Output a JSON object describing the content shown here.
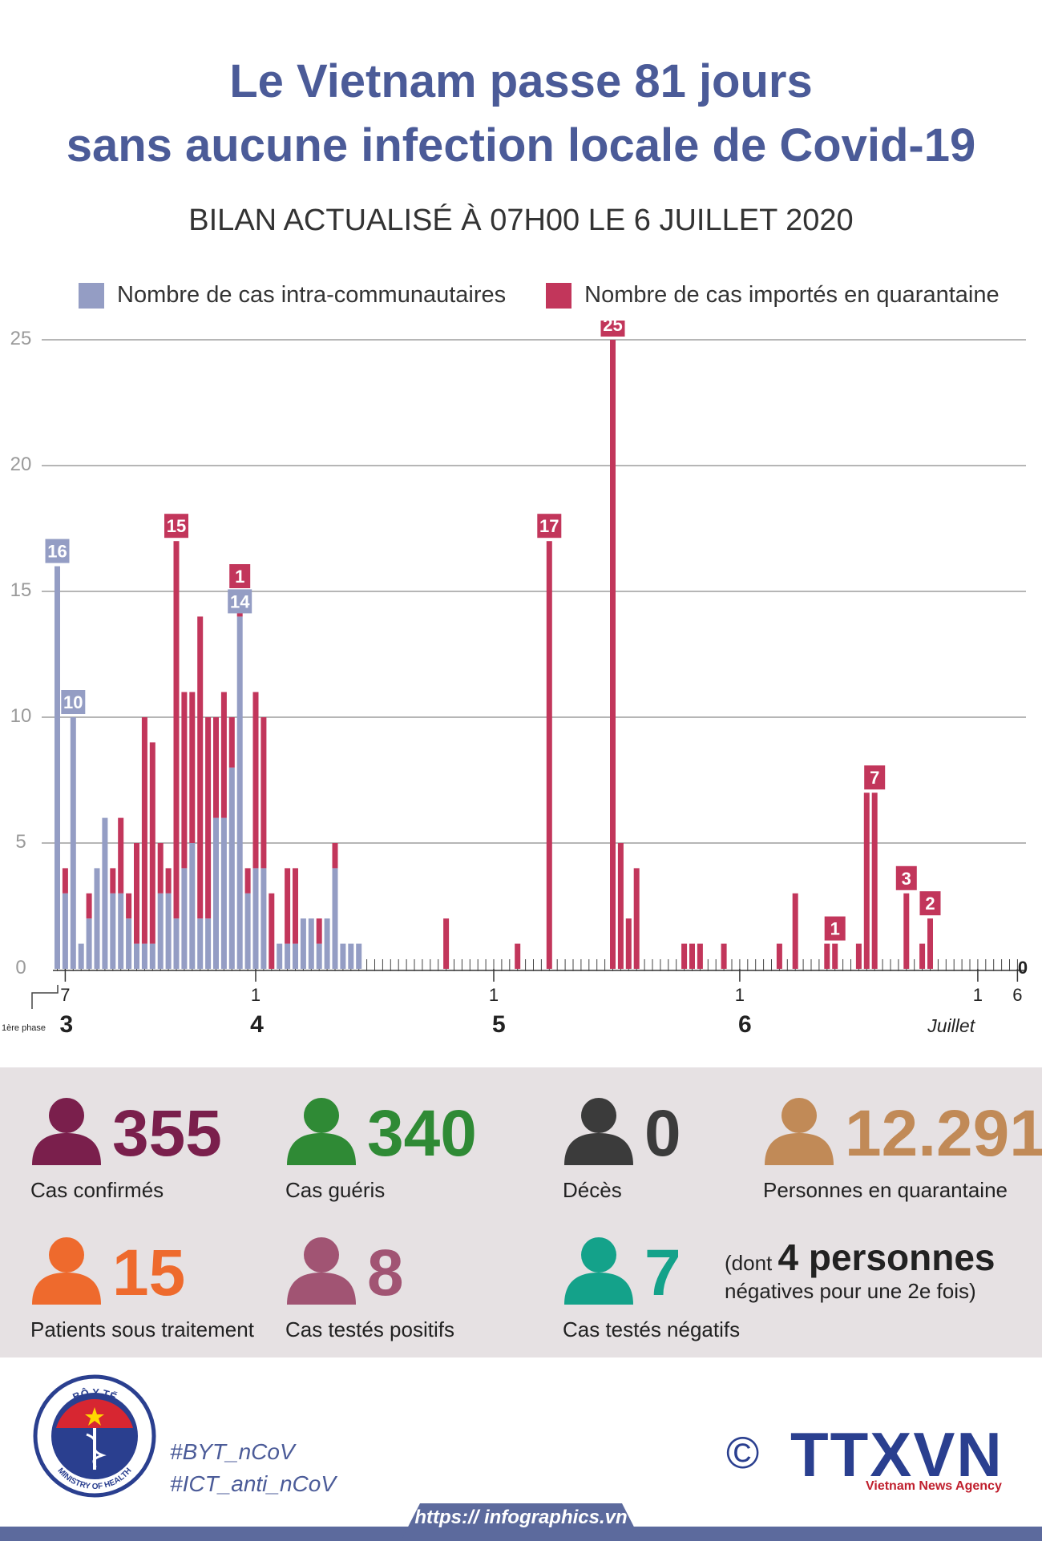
{
  "title": {
    "line1": "Le Vietnam passe 81 jours",
    "line2": "sans aucune infection locale de Covid-19",
    "subtitle": "BILAN ACTUALISÉ À 07H00 LE 6 JUILLET 2020"
  },
  "legend": {
    "local": "Nombre de cas intra-communautaires",
    "imported": "Nombre de cas importés en quarantaine"
  },
  "colors": {
    "local": "#949dc4",
    "imported": "#c2365b",
    "title": "#4b5b98"
  },
  "chart_data": {
    "type": "bar",
    "stacked": true,
    "title": "",
    "xlabel": "",
    "ylabel": "",
    "ylim": [
      0,
      25
    ],
    "yticks": [
      0,
      5,
      10,
      15,
      20,
      25
    ],
    "grid": true,
    "n_days": 122,
    "series": [
      {
        "name": "Nombre de cas intra-communautaires",
        "points": [
          [
            0,
            16
          ],
          [
            1,
            3
          ],
          [
            2,
            10
          ],
          [
            3,
            1
          ],
          [
            4,
            2
          ],
          [
            5,
            4
          ],
          [
            6,
            6
          ],
          [
            7,
            3
          ],
          [
            8,
            3
          ],
          [
            9,
            2
          ],
          [
            10,
            1
          ],
          [
            11,
            1
          ],
          [
            12,
            1
          ],
          [
            13,
            3
          ],
          [
            14,
            3
          ],
          [
            15,
            2
          ],
          [
            16,
            4
          ],
          [
            17,
            5
          ],
          [
            18,
            2
          ],
          [
            19,
            2
          ],
          [
            20,
            6
          ],
          [
            21,
            6
          ],
          [
            22,
            8
          ],
          [
            23,
            14
          ],
          [
            24,
            3
          ],
          [
            25,
            4
          ],
          [
            26,
            4
          ],
          [
            28,
            1
          ],
          [
            29,
            1
          ],
          [
            30,
            1
          ],
          [
            31,
            2
          ],
          [
            32,
            2
          ],
          [
            33,
            1
          ],
          [
            34,
            2
          ],
          [
            35,
            4
          ],
          [
            36,
            1
          ],
          [
            37,
            1
          ],
          [
            38,
            1
          ]
        ]
      },
      {
        "name": "Nombre de cas importés en quarantaine",
        "points": [
          [
            1,
            1
          ],
          [
            4,
            1
          ],
          [
            5,
            0
          ],
          [
            7,
            1
          ],
          [
            8,
            3
          ],
          [
            9,
            1
          ],
          [
            10,
            4
          ],
          [
            11,
            9
          ],
          [
            12,
            8
          ],
          [
            13,
            2
          ],
          [
            14,
            1
          ],
          [
            15,
            15
          ],
          [
            16,
            7
          ],
          [
            17,
            6
          ],
          [
            18,
            12
          ],
          [
            19,
            8
          ],
          [
            20,
            4
          ],
          [
            21,
            5
          ],
          [
            22,
            2
          ],
          [
            23,
            1
          ],
          [
            24,
            1
          ],
          [
            25,
            7
          ],
          [
            26,
            6
          ],
          [
            27,
            3
          ],
          [
            29,
            3
          ],
          [
            30,
            3
          ],
          [
            33,
            1
          ],
          [
            35,
            1
          ],
          [
            49,
            2
          ],
          [
            58,
            1
          ],
          [
            62,
            17
          ],
          [
            70,
            25
          ],
          [
            71,
            5
          ],
          [
            72,
            2
          ],
          [
            73,
            4
          ],
          [
            79,
            1
          ],
          [
            80,
            1
          ],
          [
            81,
            1
          ],
          [
            84,
            1
          ],
          [
            91,
            1
          ],
          [
            93,
            3
          ],
          [
            97,
            1
          ],
          [
            98,
            1
          ],
          [
            101,
            1
          ],
          [
            102,
            7
          ],
          [
            103,
            7
          ],
          [
            107,
            3
          ],
          [
            109,
            1
          ],
          [
            110,
            2
          ]
        ]
      }
    ],
    "bar_labels": [
      {
        "day": 0,
        "value": "16",
        "series": "local"
      },
      {
        "day": 2,
        "value": "10",
        "series": "local"
      },
      {
        "day": 15,
        "value": "15",
        "series": "imported"
      },
      {
        "day": 23,
        "value": "14",
        "series": "local"
      },
      {
        "day": 23,
        "value": "1",
        "series": "imported"
      },
      {
        "day": 62,
        "value": "17",
        "series": "imported"
      },
      {
        "day": 70,
        "value": "25",
        "series": "imported"
      },
      {
        "day": 98,
        "value": "1",
        "series": "imported"
      },
      {
        "day": 103,
        "value": "7",
        "series": "imported"
      },
      {
        "day": 107,
        "value": "3",
        "series": "imported"
      },
      {
        "day": 110,
        "value": "2",
        "series": "imported"
      }
    ],
    "x_day_ticks": [
      {
        "day": 1,
        "label": "7"
      },
      {
        "day": 25,
        "label": "1"
      },
      {
        "day": 55,
        "label": "1"
      },
      {
        "day": 86,
        "label": "1"
      },
      {
        "day": 116,
        "label": "1"
      },
      {
        "day": 121,
        "label": "6"
      }
    ],
    "x_month_labels": [
      {
        "day": 1.5,
        "label": "3"
      },
      {
        "day": 25.5,
        "label": "4"
      },
      {
        "day": 56,
        "label": "5"
      },
      {
        "day": 87,
        "label": "6"
      },
      {
        "day": 113,
        "label": "Juillet"
      }
    ],
    "phase_label": "1ère phase",
    "end_value": "0"
  },
  "stats": [
    {
      "id": "confirmed",
      "value": "355",
      "label": "Cas confirmés",
      "color": "#7a1f4c"
    },
    {
      "id": "recovered",
      "value": "340",
      "label": "Cas guéris",
      "color": "#2f8a35"
    },
    {
      "id": "deaths",
      "value": "0",
      "label": "Décès",
      "color": "#3b3b3b"
    },
    {
      "id": "quarantine",
      "value": "12.291",
      "label": "Personnes en quarantaine",
      "color": "#c18a57"
    },
    {
      "id": "treatment",
      "value": "15",
      "label": "Patients sous traitement",
      "color": "#ee6a2d"
    },
    {
      "id": "positive",
      "value": "8",
      "label": "Cas testés positifs",
      "color": "#a15473"
    },
    {
      "id": "negative",
      "value": "7",
      "label": "Cas testés négatifs",
      "color": "#14a28a"
    }
  ],
  "note": {
    "prefix": "(dont",
    "big": "4 personnes",
    "line2": "négatives pour une 2e fois)"
  },
  "footer": {
    "logo_top": "BỘ Y TẾ",
    "logo_bottom": "MINISTRY OF HEALTH",
    "hashtag1": "#BYT_nCoV",
    "hashtag2": "#ICT_anti_nCoV",
    "copyright": "©",
    "agency": "TTXVN",
    "agency_sub": "Vietnam News Agency",
    "url": "https:// infographics.vn"
  }
}
